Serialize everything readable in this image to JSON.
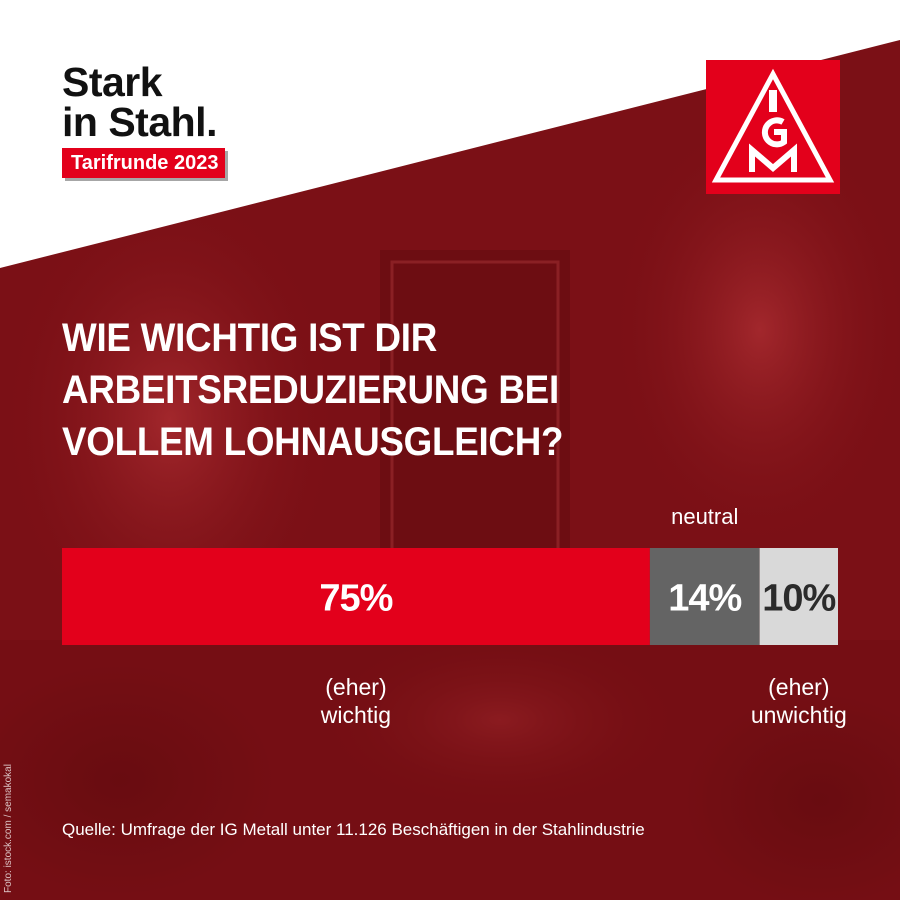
{
  "brand": {
    "line1": "Stark",
    "line2": "in Stahl.",
    "badge": "Tarifrunde 2023",
    "logo_icon": "ig-metall-logo-icon",
    "accent_color": "#e3001b"
  },
  "question": {
    "line1": "WIE WICHTIG IST DIR",
    "line2": "ARBEITSREDUZIERUNG BEI",
    "line3": "VOLLEM LOHNAUSGLEICH?"
  },
  "chart_data": {
    "type": "bar",
    "orientation": "horizontal-stacked",
    "segments": [
      {
        "value": 75,
        "label": "75%",
        "caption": [
          "(eher)",
          "wichtig"
        ],
        "color": "#e3001b",
        "text_color": "#ffffff"
      },
      {
        "value": 14,
        "label": "14%",
        "caption": [
          "neutral"
        ],
        "color": "#646464",
        "text_color": "#ffffff"
      },
      {
        "value": 10,
        "label": "10%",
        "caption": [
          "(eher)",
          "unwichtig"
        ],
        "color": "#d9d9d9",
        "text_color": "#2b2b2b"
      }
    ]
  },
  "source": "Quelle: Umfrage der IG Metall unter 11.126 Beschäftigen in der Stahlindustrie",
  "credit": "Foto: istock.com / semakokal"
}
